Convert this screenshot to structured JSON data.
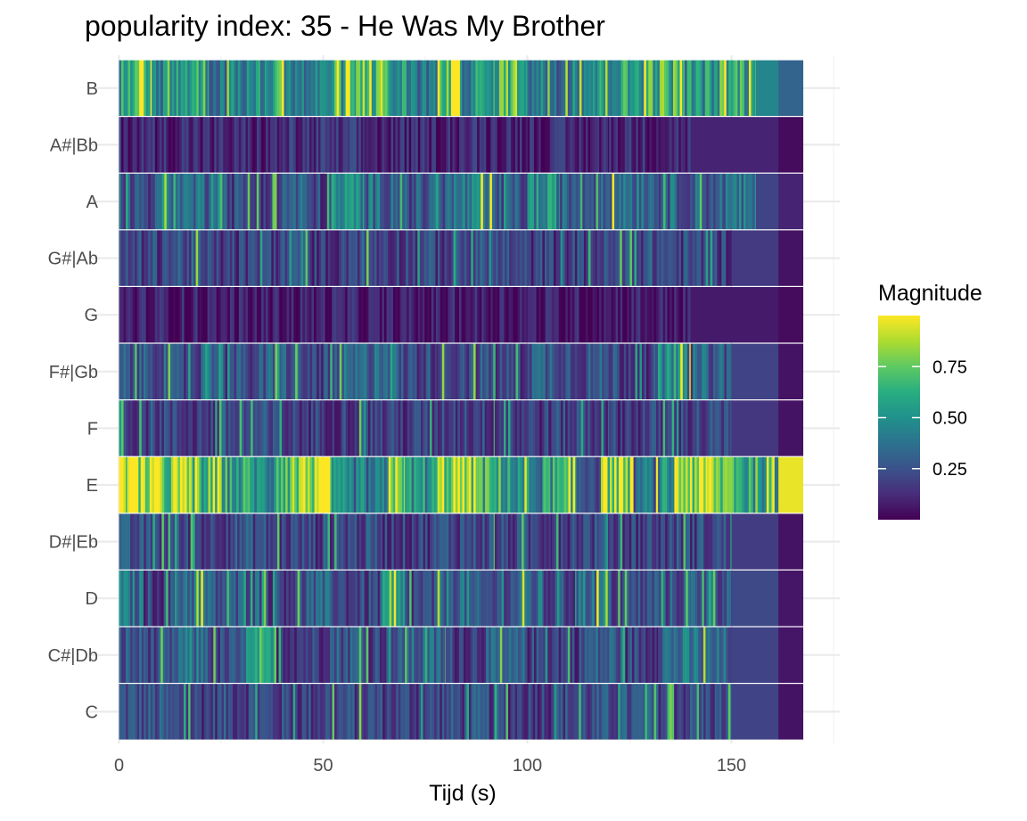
{
  "chart_data": {
    "type": "heatmap",
    "title": "popularity index:  35  -  He Was My Brother",
    "xlabel": "Tijd (s)",
    "ylabel": "",
    "xlim": [
      0,
      175
    ],
    "x_ticks": [
      0,
      50,
      100,
      150
    ],
    "x_tick_labels": [
      "0",
      "50",
      "100",
      "150"
    ],
    "x_end": 167.5,
    "y_categories": [
      "C",
      "C#|Db",
      "D",
      "D#|Eb",
      "E",
      "F",
      "F#|Gb",
      "G",
      "G#|Ab",
      "A",
      "A#|Bb",
      "B"
    ],
    "grid": true,
    "colorscale": "viridis",
    "legend": {
      "title": "Magnitude",
      "position": "right",
      "range": [
        0.0,
        1.0
      ],
      "ticks": [
        0.25,
        0.5,
        0.75
      ],
      "tick_labels": [
        "0.25",
        "0.50",
        "0.75"
      ]
    },
    "pitch_segments": {
      "E": [
        [
          0,
          2,
          0.95
        ],
        [
          2,
          10,
          0.85
        ],
        [
          10,
          18,
          0.8
        ],
        [
          18,
          26,
          0.65
        ],
        [
          26,
          34,
          0.55
        ],
        [
          34,
          38,
          0.45
        ],
        [
          38,
          44,
          0.75
        ],
        [
          44,
          52,
          0.92
        ],
        [
          52,
          60,
          0.4
        ],
        [
          60,
          66,
          0.35
        ],
        [
          66,
          70,
          0.9
        ],
        [
          70,
          78,
          0.5
        ],
        [
          78,
          88,
          0.85
        ],
        [
          88,
          96,
          0.6
        ],
        [
          96,
          104,
          0.45
        ],
        [
          104,
          112,
          0.55
        ],
        [
          112,
          118,
          0.3
        ],
        [
          118,
          126,
          0.85
        ],
        [
          126,
          132,
          0.35
        ],
        [
          132,
          136,
          0.45
        ],
        [
          136,
          144,
          0.88
        ],
        [
          144,
          152,
          0.75
        ],
        [
          152,
          160,
          0.6
        ],
        [
          160,
          161.5,
          0.4
        ],
        [
          161.5,
          167.5,
          0.97
        ]
      ],
      "B": [
        [
          0,
          8,
          0.55
        ],
        [
          8,
          14,
          0.45
        ],
        [
          14,
          22,
          0.6
        ],
        [
          22,
          28,
          0.4
        ],
        [
          28,
          36,
          0.45
        ],
        [
          36,
          42,
          0.6
        ],
        [
          42,
          50,
          0.4
        ],
        [
          50,
          58,
          0.55
        ],
        [
          58,
          66,
          0.72
        ],
        [
          66,
          72,
          0.5
        ],
        [
          72,
          78,
          0.4
        ],
        [
          78,
          84,
          0.8
        ],
        [
          84,
          92,
          0.5
        ],
        [
          92,
          100,
          0.7
        ],
        [
          100,
          110,
          0.4
        ],
        [
          110,
          118,
          0.5
        ],
        [
          118,
          128,
          0.55
        ],
        [
          128,
          138,
          0.65
        ],
        [
          138,
          146,
          0.5
        ],
        [
          146,
          156,
          0.6
        ],
        [
          156,
          161.5,
          0.45
        ],
        [
          161.5,
          167.5,
          0.32
        ]
      ],
      "A": [
        [
          0,
          10,
          0.25
        ],
        [
          10,
          16,
          0.45
        ],
        [
          16,
          22,
          0.35
        ],
        [
          22,
          26,
          0.55
        ],
        [
          26,
          40,
          0.22
        ],
        [
          40,
          46,
          0.3
        ],
        [
          46,
          52,
          0.2
        ],
        [
          52,
          60,
          0.45
        ],
        [
          60,
          70,
          0.35
        ],
        [
          70,
          76,
          0.25
        ],
        [
          76,
          82,
          0.3
        ],
        [
          82,
          92,
          0.38
        ],
        [
          92,
          100,
          0.25
        ],
        [
          100,
          108,
          0.45
        ],
        [
          108,
          118,
          0.3
        ],
        [
          118,
          130,
          0.4
        ],
        [
          130,
          140,
          0.32
        ],
        [
          140,
          148,
          0.3
        ],
        [
          148,
          156,
          0.35
        ],
        [
          156,
          161.5,
          0.2
        ],
        [
          161.5,
          167.5,
          0.1
        ]
      ],
      "D": [
        [
          0,
          6,
          0.35
        ],
        [
          6,
          14,
          0.2
        ],
        [
          14,
          22,
          0.38
        ],
        [
          22,
          30,
          0.25
        ],
        [
          30,
          36,
          0.3
        ],
        [
          36,
          46,
          0.22
        ],
        [
          46,
          54,
          0.28
        ],
        [
          54,
          64,
          0.2
        ],
        [
          64,
          70,
          0.42
        ],
        [
          70,
          78,
          0.2
        ],
        [
          78,
          86,
          0.35
        ],
        [
          86,
          96,
          0.22
        ],
        [
          96,
          104,
          0.32
        ],
        [
          104,
          112,
          0.2
        ],
        [
          112,
          120,
          0.38
        ],
        [
          120,
          130,
          0.22
        ],
        [
          130,
          140,
          0.25
        ],
        [
          140,
          150,
          0.3
        ],
        [
          150,
          161.5,
          0.22
        ],
        [
          161.5,
          167.5,
          0.06
        ]
      ],
      "C#|Db": [
        [
          0,
          8,
          0.25
        ],
        [
          8,
          14,
          0.2
        ],
        [
          14,
          22,
          0.35
        ],
        [
          22,
          30,
          0.2
        ],
        [
          30,
          38,
          0.45
        ],
        [
          38,
          50,
          0.2
        ],
        [
          50,
          60,
          0.28
        ],
        [
          60,
          70,
          0.22
        ],
        [
          70,
          80,
          0.3
        ],
        [
          80,
          90,
          0.2
        ],
        [
          90,
          100,
          0.26
        ],
        [
          100,
          114,
          0.2
        ],
        [
          114,
          124,
          0.28
        ],
        [
          124,
          132,
          0.2
        ],
        [
          132,
          142,
          0.35
        ],
        [
          142,
          150,
          0.3
        ],
        [
          150,
          161.5,
          0.2
        ],
        [
          161.5,
          167.5,
          0.06
        ]
      ],
      "F#|Gb": [
        [
          0,
          6,
          0.25
        ],
        [
          6,
          12,
          0.3
        ],
        [
          12,
          20,
          0.2
        ],
        [
          20,
          26,
          0.42
        ],
        [
          26,
          36,
          0.22
        ],
        [
          36,
          44,
          0.28
        ],
        [
          44,
          54,
          0.2
        ],
        [
          54,
          62,
          0.3
        ],
        [
          62,
          68,
          0.42
        ],
        [
          68,
          78,
          0.22
        ],
        [
          78,
          90,
          0.25
        ],
        [
          90,
          100,
          0.2
        ],
        [
          100,
          110,
          0.3
        ],
        [
          110,
          122,
          0.25
        ],
        [
          122,
          132,
          0.2
        ],
        [
          132,
          140,
          0.42
        ],
        [
          140,
          150,
          0.3
        ],
        [
          150,
          161.5,
          0.2
        ],
        [
          161.5,
          167.5,
          0.05
        ]
      ],
      "G#|Ab": [
        [
          0,
          10,
          0.2
        ],
        [
          10,
          20,
          0.25
        ],
        [
          20,
          34,
          0.18
        ],
        [
          34,
          44,
          0.2
        ],
        [
          44,
          54,
          0.18
        ],
        [
          54,
          62,
          0.25
        ],
        [
          62,
          72,
          0.22
        ],
        [
          72,
          84,
          0.2
        ],
        [
          84,
          96,
          0.22
        ],
        [
          96,
          110,
          0.18
        ],
        [
          110,
          124,
          0.2
        ],
        [
          124,
          136,
          0.24
        ],
        [
          136,
          150,
          0.2
        ],
        [
          150,
          161.5,
          0.17
        ],
        [
          161.5,
          167.5,
          0.05
        ]
      ],
      "F": [
        [
          0,
          12,
          0.22
        ],
        [
          12,
          24,
          0.18
        ],
        [
          24,
          36,
          0.22
        ],
        [
          36,
          50,
          0.18
        ],
        [
          50,
          64,
          0.2
        ],
        [
          64,
          78,
          0.18
        ],
        [
          78,
          92,
          0.21
        ],
        [
          92,
          106,
          0.18
        ],
        [
          106,
          120,
          0.2
        ],
        [
          120,
          136,
          0.18
        ],
        [
          136,
          150,
          0.2
        ],
        [
          150,
          161.5,
          0.16
        ],
        [
          161.5,
          167.5,
          0.05
        ]
      ],
      "D#|Eb": [
        [
          0,
          12,
          0.22
        ],
        [
          12,
          24,
          0.2
        ],
        [
          24,
          36,
          0.24
        ],
        [
          36,
          50,
          0.2
        ],
        [
          50,
          64,
          0.22
        ],
        [
          64,
          78,
          0.2
        ],
        [
          78,
          92,
          0.23
        ],
        [
          92,
          106,
          0.2
        ],
        [
          106,
          120,
          0.22
        ],
        [
          120,
          136,
          0.2
        ],
        [
          136,
          150,
          0.22
        ],
        [
          150,
          161.5,
          0.18
        ],
        [
          161.5,
          167.5,
          0.05
        ]
      ],
      "C": [
        [
          0,
          12,
          0.24
        ],
        [
          12,
          24,
          0.2
        ],
        [
          24,
          36,
          0.22
        ],
        [
          36,
          50,
          0.2
        ],
        [
          50,
          64,
          0.22
        ],
        [
          64,
          78,
          0.2
        ],
        [
          78,
          92,
          0.22
        ],
        [
          92,
          106,
          0.2
        ],
        [
          106,
          120,
          0.22
        ],
        [
          120,
          136,
          0.24
        ],
        [
          136,
          150,
          0.22
        ],
        [
          150,
          161.5,
          0.2
        ],
        [
          161.5,
          167.5,
          0.05
        ]
      ],
      "A#|Bb": [
        [
          0,
          20,
          0.12
        ],
        [
          20,
          40,
          0.1
        ],
        [
          40,
          60,
          0.13
        ],
        [
          60,
          80,
          0.1
        ],
        [
          80,
          100,
          0.12
        ],
        [
          100,
          120,
          0.1
        ],
        [
          120,
          140,
          0.12
        ],
        [
          140,
          161.5,
          0.1
        ],
        [
          161.5,
          167.5,
          0.03
        ]
      ],
      "G": [
        [
          0,
          20,
          0.08
        ],
        [
          20,
          40,
          0.07
        ],
        [
          40,
          60,
          0.08
        ],
        [
          60,
          80,
          0.06
        ],
        [
          80,
          100,
          0.08
        ],
        [
          100,
          120,
          0.07
        ],
        [
          120,
          140,
          0.08
        ],
        [
          140,
          161.5,
          0.07
        ],
        [
          161.5,
          167.5,
          0.03
        ]
      ]
    }
  }
}
